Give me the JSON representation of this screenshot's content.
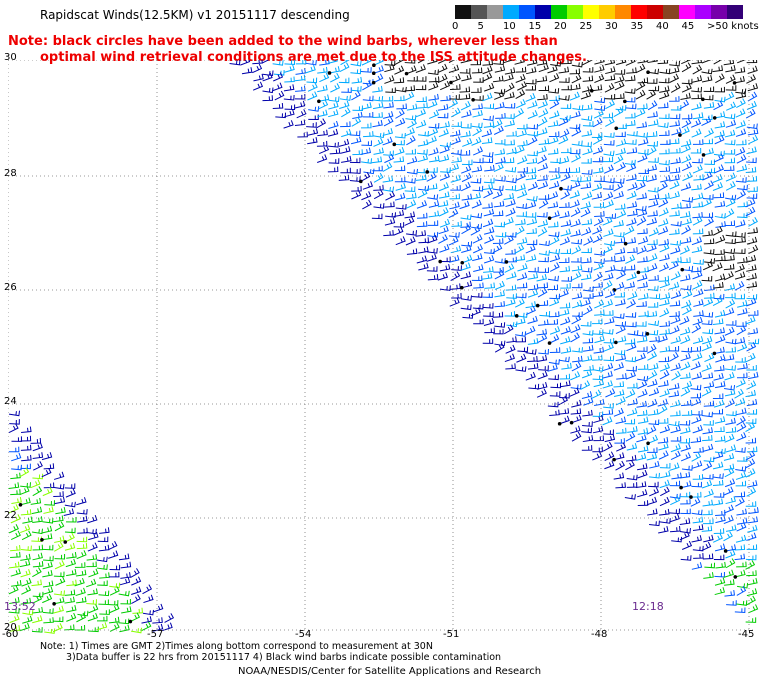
{
  "title": "Rapidscat Winds(12.5KM) v1 20151117 descending",
  "notes": {
    "line1": "Note: black circles have been added to the wind barbs, wherever less than",
    "line2": "optimal wind retrieval conditions are met due to the ISS attitude changes."
  },
  "colorbar": {
    "colors": [
      "#111111",
      "#555555",
      "#999999",
      "#00aaff",
      "#0055ff",
      "#0000aa",
      "#00cc00",
      "#88ff00",
      "#ffff00",
      "#ffcc00",
      "#ff8800",
      "#ff0000",
      "#cc0000",
      "#884422",
      "#ff00ff",
      "#aa00ff",
      "#7700aa",
      "#330077"
    ],
    "labels": [
      "0",
      "5",
      "10",
      "15",
      "20",
      "25",
      "30",
      "35",
      "40",
      "45",
      ">50 knots"
    ]
  },
  "chart_data": {
    "type": "wind-barb-map",
    "lat_labels": [
      "30",
      "28",
      "26",
      "24",
      "22",
      "20"
    ],
    "lon_labels": [
      "-60",
      "-57",
      "-54",
      "-51",
      "-48",
      "-45"
    ],
    "lat_range": [
      20,
      30
    ],
    "lon_range": [
      -60,
      -45
    ],
    "grid": "dotted",
    "swath_times": [
      "13:52",
      "12:18"
    ]
  },
  "footnotes": {
    "line1": "Note: 1) Times are GMT 2)Times along bottom correspond to measurement at 30N",
    "line2": "3)Data buffer is 22 hrs from 20151117 4) Black wind barbs indicate possible contamination"
  },
  "credit": "NOAA/NESDIS/Center for Satellite Applications and Research"
}
